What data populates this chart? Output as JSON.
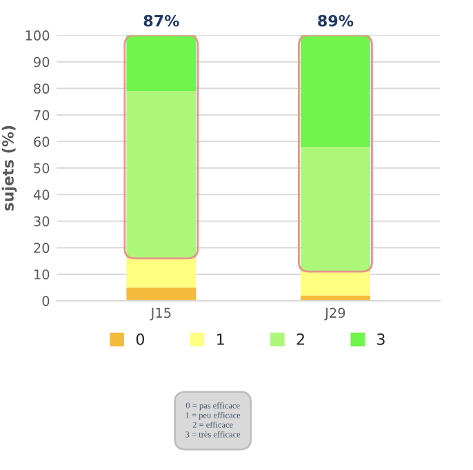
{
  "chart_data": {
    "type": "bar",
    "stacked": true,
    "ylabel": "sujets (%)",
    "categories": [
      "J15",
      "J29"
    ],
    "series": [
      {
        "name": "0",
        "color": "#f4bb3c",
        "values": [
          5,
          2
        ]
      },
      {
        "name": "1",
        "color": "#ffff80",
        "values": [
          11,
          9
        ]
      },
      {
        "name": "2",
        "color": "#adf77a",
        "values": [
          63,
          47
        ]
      },
      {
        "name": "3",
        "color": "#70f54c",
        "values": [
          21,
          42
        ]
      }
    ],
    "ylim": [
      0,
      100
    ],
    "yticks": [
      0,
      10,
      20,
      30,
      40,
      50,
      60,
      70,
      80,
      90,
      100
    ],
    "grid": "y",
    "legend": "bottom",
    "annotations": [
      {
        "text": "87%",
        "x": "J15",
        "y": 100
      },
      {
        "text": "89%",
        "x": "J29",
        "y": 100
      },
      "0 = pas efficace\n1 = peu efficace\n2 = efficace\n3 = très efficace"
    ]
  }
}
